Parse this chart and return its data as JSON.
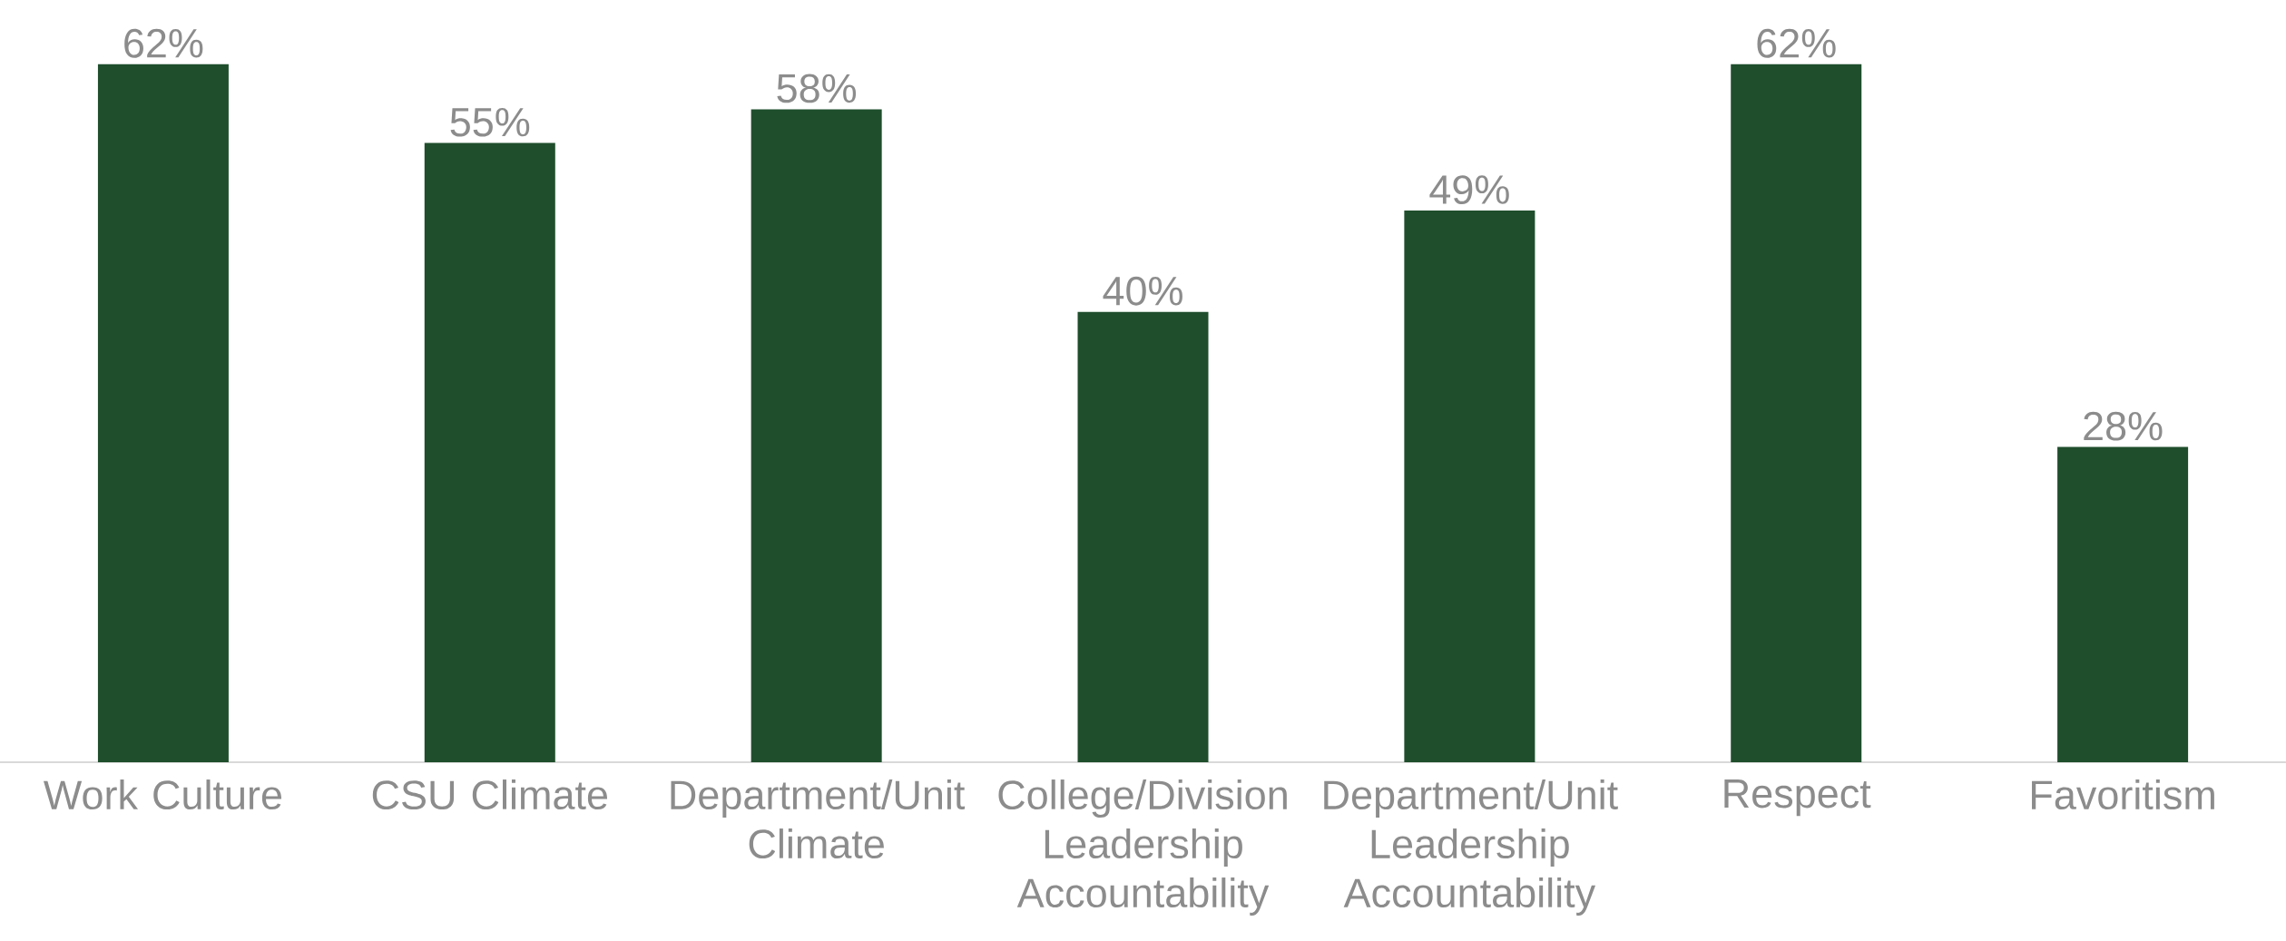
{
  "chart_data": {
    "type": "bar",
    "categories": [
      "Work Culture",
      "CSU Climate",
      "Department/Unit Climate",
      "College/Division Leadership Accountability",
      "Department/Unit Leadership Accountability",
      "Respect",
      "Favoritism"
    ],
    "values": [
      62,
      55,
      58,
      40,
      49,
      62,
      28
    ],
    "value_labels": [
      "62%",
      "55%",
      "58%",
      "40%",
      "49%",
      "62%",
      "28%"
    ],
    "color": "#1f4e2c"
  }
}
